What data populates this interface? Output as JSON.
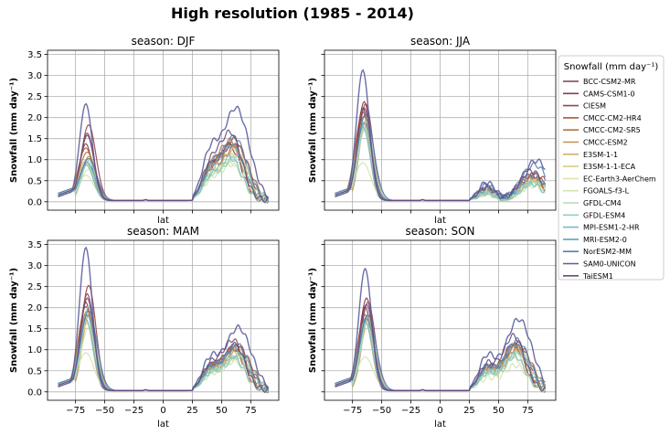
{
  "figure": {
    "title": "High resolution (1985 - 2014)"
  },
  "legend": {
    "title": "Snowfall (mm day⁻¹)",
    "entries": [
      {
        "name": "BCC-CSM2-MR",
        "color": "#7a3f59"
      },
      {
        "name": "CAMS-CSM1-0",
        "color": "#8c3a4a"
      },
      {
        "name": "CIESM",
        "color": "#9b4545"
      },
      {
        "name": "CMCC-CM2-HR4",
        "color": "#a85a3c"
      },
      {
        "name": "CMCC-CM2-SR5",
        "color": "#b3733d"
      },
      {
        "name": "CMCC-ESM2",
        "color": "#c0914f"
      },
      {
        "name": "E3SM-1-1",
        "color": "#d3b06c"
      },
      {
        "name": "E3SM-1-1-ECA",
        "color": "#e0c98a"
      },
      {
        "name": "EC-Earth3-AerChem",
        "color": "#e6e0a6"
      },
      {
        "name": "FGOALS-f3-L",
        "color": "#cfe5b0"
      },
      {
        "name": "GFDL-CM4",
        "color": "#b2dcb6"
      },
      {
        "name": "GFDL-ESM4",
        "color": "#93d0c0"
      },
      {
        "name": "MPI-ESM1-2-HR",
        "color": "#76bcc4"
      },
      {
        "name": "MRI-ESM2-0",
        "color": "#5f9fc0"
      },
      {
        "name": "NorESM2-MM",
        "color": "#5080b3"
      },
      {
        "name": "SAM0-UNICON",
        "color": "#5a5e9e"
      },
      {
        "name": "TaiESM1",
        "color": "#6a4a7c"
      }
    ]
  },
  "chart_data": [
    {
      "type": "line",
      "title": "season: DJF",
      "xlabel": "lat",
      "ylabel": "Snowfall (mm day⁻¹)",
      "xlim": [
        -99,
        99
      ],
      "ylim": [
        -0.2,
        3.6
      ],
      "xticks": [
        -75,
        -50,
        -25,
        0,
        25,
        50,
        75
      ],
      "yticks": [
        0.0,
        0.5,
        1.0,
        1.5,
        2.0,
        2.5,
        3.0,
        3.5
      ],
      "show_xticklabels": false,
      "show_yticklabels": true,
      "grid": true,
      "sh_peaks": [
        1.35,
        1.55,
        1.8,
        1.25,
        1.15,
        1.05,
        0.95,
        0.9,
        0.75,
        0.6,
        0.85,
        0.95,
        0.85,
        0.9,
        1.0,
        2.3,
        1.6
      ],
      "nh_peaks": [
        1.25,
        1.35,
        1.45,
        1.3,
        1.4,
        1.3,
        1.2,
        1.1,
        0.9,
        0.85,
        1.0,
        1.05,
        1.0,
        1.3,
        1.5,
        2.2,
        1.6
      ],
      "sh_center": -65,
      "nh_center": 60
    },
    {
      "type": "line",
      "title": "season: JJA",
      "xlabel": "lat",
      "ylabel": "Snowfall (mm day⁻¹)",
      "xlim": [
        -99,
        99
      ],
      "ylim": [
        -0.2,
        3.6
      ],
      "xticks": [
        -75,
        -50,
        -25,
        0,
        25,
        50,
        75
      ],
      "yticks": [
        0.0,
        0.5,
        1.0,
        1.5,
        2.0,
        2.5,
        3.0,
        3.5
      ],
      "show_xticklabels": false,
      "show_yticklabels": false,
      "grid": true,
      "sh_peaks": [
        2.2,
        2.35,
        2.3,
        2.1,
        2.0,
        1.9,
        1.85,
        1.8,
        1.7,
        0.9,
        1.7,
        1.9,
        1.75,
        1.85,
        2.05,
        3.1,
        2.2
      ],
      "nh_peaks": [
        0.6,
        0.55,
        0.65,
        0.5,
        0.55,
        0.5,
        0.45,
        0.45,
        0.4,
        0.35,
        0.45,
        0.45,
        0.4,
        0.6,
        0.85,
        0.95,
        0.7
      ],
      "sh_center": -65,
      "nh_center": 80
    },
    {
      "type": "line",
      "title": "season: MAM",
      "xlabel": "lat",
      "ylabel": "Snowfall (mm day⁻¹)",
      "xlim": [
        -99,
        99
      ],
      "ylim": [
        -0.2,
        3.6
      ],
      "xticks": [
        -75,
        -50,
        -25,
        0,
        25,
        50,
        75
      ],
      "yticks": [
        0.0,
        0.5,
        1.0,
        1.5,
        2.0,
        2.5,
        3.0,
        3.5
      ],
      "show_xticklabels": true,
      "show_yticklabels": true,
      "grid": true,
      "sh_peaks": [
        2.1,
        2.3,
        2.5,
        2.0,
        1.9,
        1.8,
        1.7,
        1.6,
        1.5,
        0.9,
        1.8,
        2.0,
        1.7,
        1.8,
        1.9,
        3.4,
        2.2
      ],
      "nh_peaks": [
        1.0,
        1.05,
        1.1,
        1.0,
        1.0,
        0.95,
        0.9,
        0.85,
        0.75,
        0.7,
        0.8,
        0.85,
        0.8,
        1.0,
        1.1,
        1.5,
        1.2
      ],
      "sh_center": -65,
      "nh_center": 62
    },
    {
      "type": "line",
      "title": "season: SON",
      "xlabel": "lat",
      "ylabel": "Snowfall (mm day⁻¹)",
      "xlim": [
        -99,
        99
      ],
      "ylim": [
        -0.2,
        3.6
      ],
      "xticks": [
        -75,
        -50,
        -25,
        0,
        25,
        50,
        75
      ],
      "yticks": [
        0.0,
        0.5,
        1.0,
        1.5,
        2.0,
        2.5,
        3.0,
        3.5
      ],
      "show_xticklabels": true,
      "show_yticklabels": false,
      "grid": true,
      "sh_peaks": [
        2.0,
        2.2,
        2.1,
        1.8,
        1.75,
        1.7,
        1.65,
        1.6,
        1.5,
        0.8,
        1.6,
        1.75,
        1.65,
        1.7,
        1.8,
        2.9,
        2.05
      ],
      "nh_peaks": [
        1.1,
        1.05,
        1.15,
        1.05,
        1.05,
        1.0,
        0.95,
        0.9,
        0.8,
        0.6,
        0.85,
        0.9,
        0.85,
        1.1,
        1.2,
        1.7,
        1.3
      ],
      "sh_center": -63,
      "nh_center": 65
    }
  ]
}
